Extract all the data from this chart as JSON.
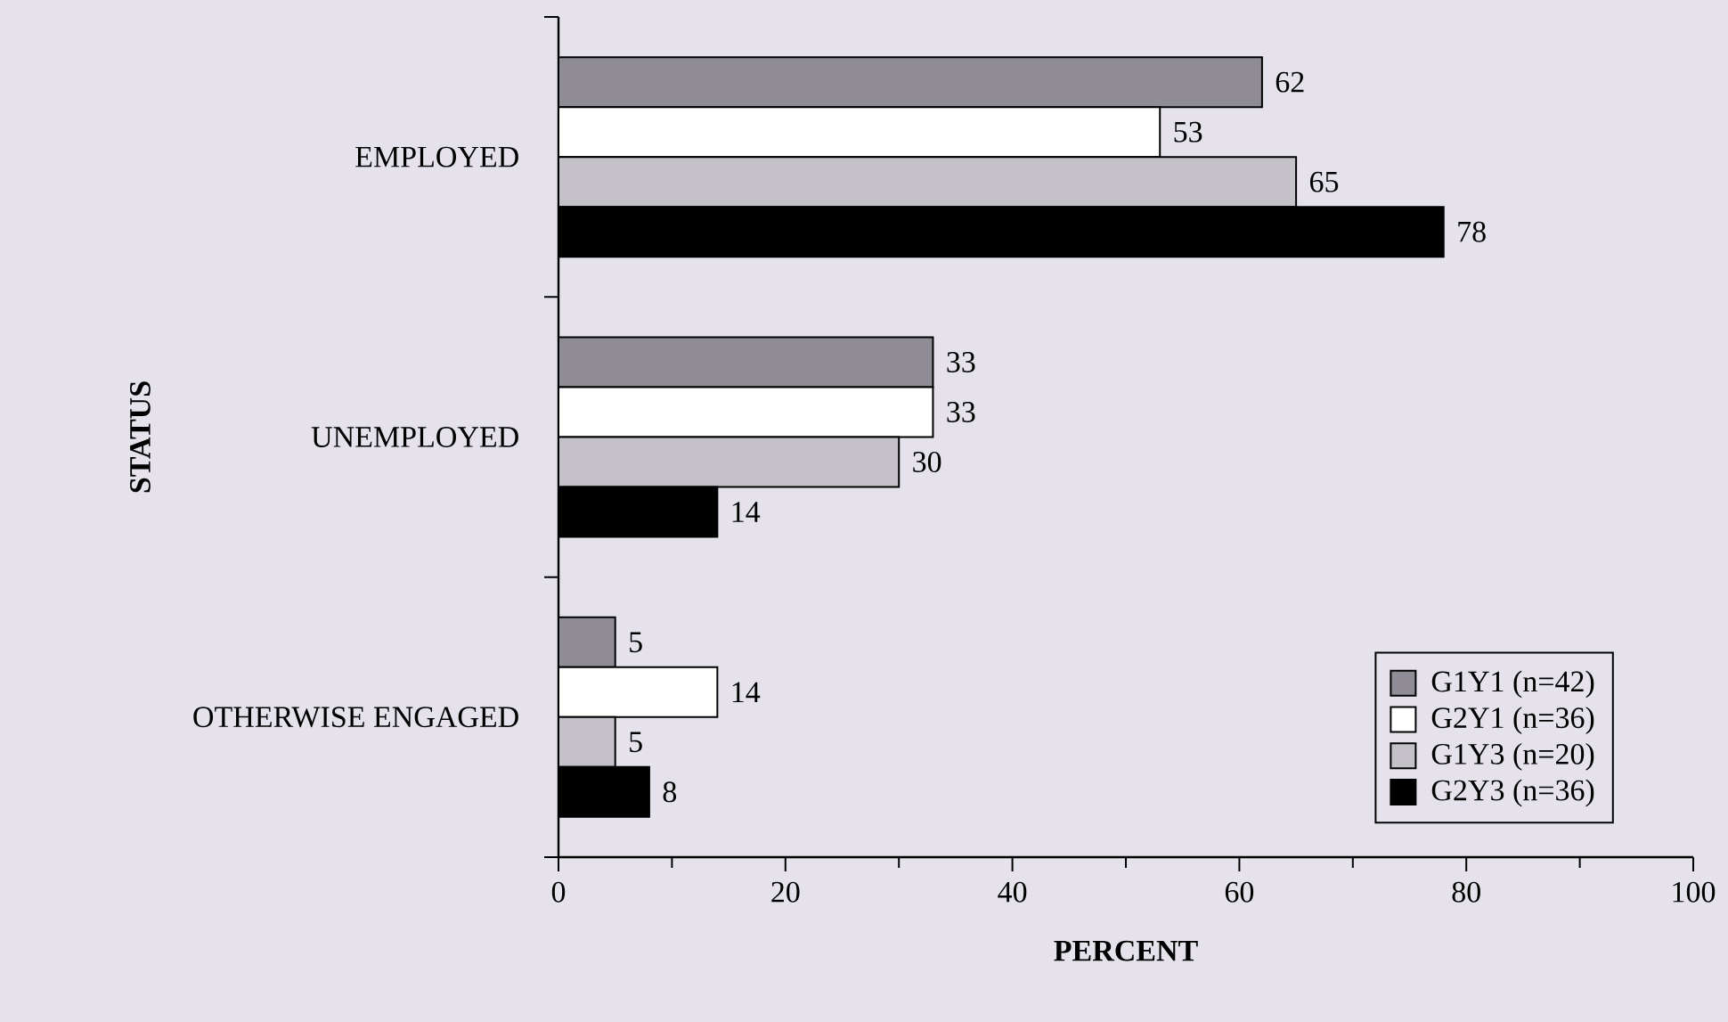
{
  "chart_data": {
    "type": "bar",
    "orientation": "horizontal",
    "xlabel": "PERCENT",
    "ylabel": "STATUS",
    "categories": [
      "EMPLOYED",
      "UNEMPLOYED",
      "OTHERWISE ENGAGED"
    ],
    "series": [
      {
        "name": "G1Y1 (n=42)",
        "color": "#8f8c96",
        "values": [
          62,
          33,
          5
        ]
      },
      {
        "name": "G2Y1 (n=36)",
        "color": "#ffffff",
        "values": [
          53,
          33,
          14
        ]
      },
      {
        "name": "G1Y3 (n=20)",
        "color": "#c4c2c8",
        "values": [
          65,
          30,
          5
        ]
      },
      {
        "name": "G2Y3 (n=36)",
        "color": "#000000",
        "values": [
          78,
          14,
          8
        ]
      }
    ],
    "xlim": [
      0,
      100
    ],
    "xticks": [
      0,
      20,
      40,
      60,
      80,
      100
    ],
    "data_labels": true,
    "legend": "bottom right"
  }
}
